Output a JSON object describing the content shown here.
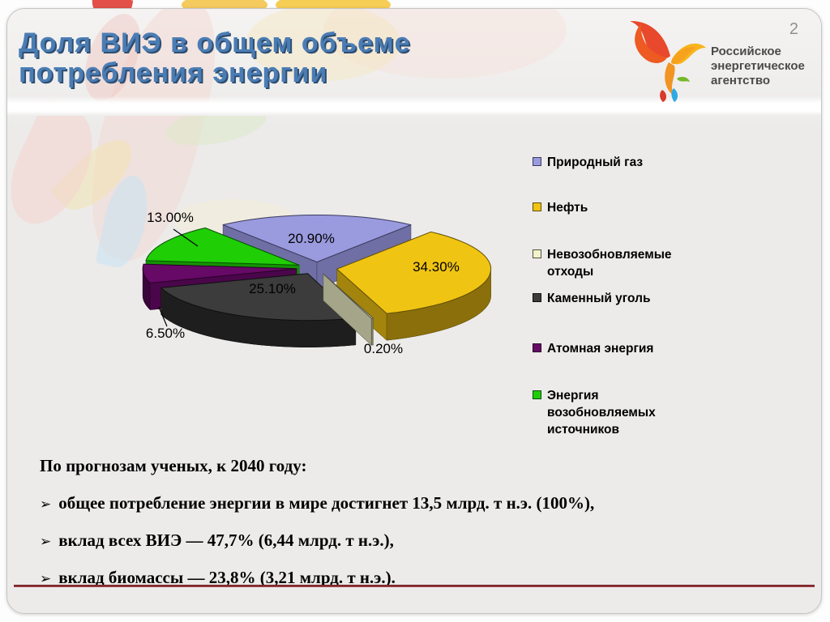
{
  "page": {
    "number": "2"
  },
  "header": {
    "title_line1": "Доля ВИЭ в общем объеме",
    "title_line2": "потребления энергии",
    "logo": {
      "line1": "Российское",
      "line2": "энергетическое",
      "line3": "агентство"
    }
  },
  "chart_data": {
    "type": "pie",
    "style": "3d-exploded",
    "unit": "%",
    "legend_position": "right",
    "total": 100,
    "slices": [
      {
        "name": "Природный газ",
        "value": 20.9,
        "label": "20.90%",
        "color": "#9A9ADF",
        "side": "#5A5A85",
        "face": "#6F6FA5",
        "edge": "#3A3A5C"
      },
      {
        "name": "Нефть",
        "value": 34.3,
        "label": "34.30%",
        "color": "#F0C412",
        "side": "#8A6F0B",
        "face": "#A3840D",
        "edge": "#5F4D08"
      },
      {
        "name": "Невозобновляемые отходы",
        "value": 0.2,
        "label": "0.20%",
        "color": "#F2F2CC",
        "side": "#7E7E63",
        "face": "#A5A58A",
        "edge": "#50503C"
      },
      {
        "name": "Каменный уголь",
        "value": 25.1,
        "label": "25.10%",
        "color": "#3C3C3C",
        "side": "#1E1E1E",
        "face": "#2B2B2B",
        "edge": "#0F0F0F"
      },
      {
        "name": "Атомная энергия",
        "value": 6.5,
        "label": "6.50%",
        "color": "#670967",
        "side": "#3A053A",
        "face": "#4B064B",
        "edge": "#260226"
      },
      {
        "name": "Энергия возобновляемых источников",
        "value": 13.0,
        "label": "13.00%",
        "color": "#1FCE05",
        "side": "#0E7A02",
        "face": "#149203",
        "edge": "#084F01"
      }
    ]
  },
  "notes": {
    "intro": "По прогнозам ученых, к 2040 году:",
    "bullet_char": "➢",
    "bullets": [
      "общее потребление энергии в мире достигнет 13,5 млрд. т н.э. (100%),",
      "вклад всех ВИЭ — 47,7% (6,44 млрд. т н.э.),",
      "вклад биомассы — 23,8% (3,21 млрд. т н.э.)."
    ]
  },
  "colors": {
    "title_blue": "#4B7DB4",
    "divider_red": "#96353A"
  }
}
